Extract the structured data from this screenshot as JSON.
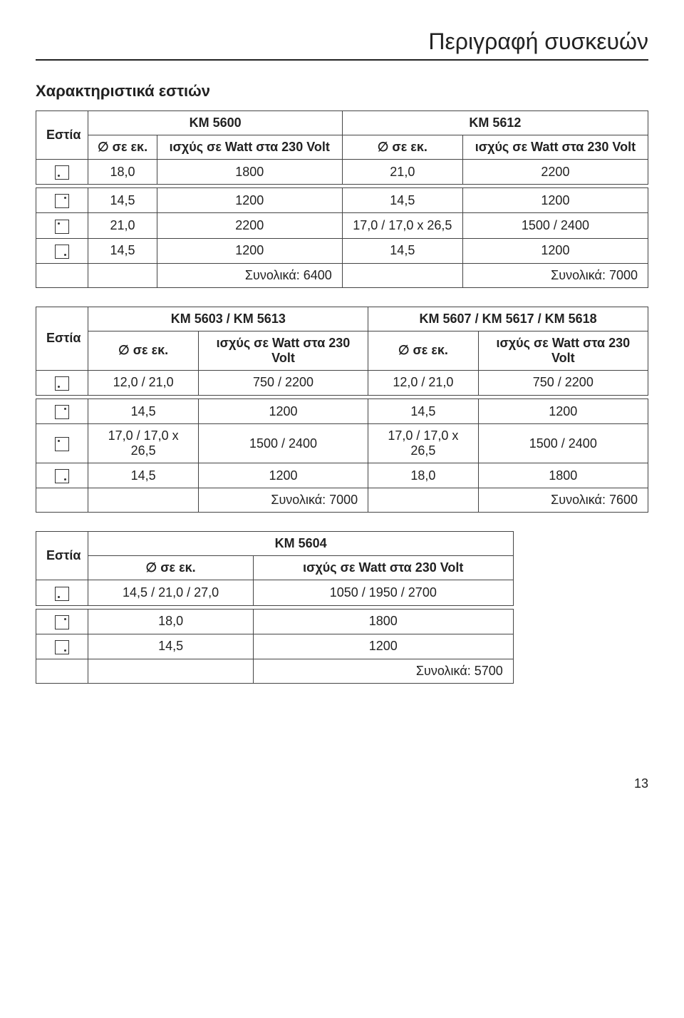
{
  "page_title": "Περιγραφή συσκευών",
  "section_title": "Χαρακτηριστικά εστιών",
  "labels": {
    "estia": "Εστία",
    "diameter": "∅ σε εκ.",
    "power": "ισχύς σε Watt στα 230 Volt",
    "power_wide": "ισχύς σε Watt στα 230 Volt"
  },
  "table1": {
    "model_a": "KM 5600",
    "model_b": "KM 5612",
    "rows": [
      {
        "icon": "bl",
        "a_d": "18,0",
        "a_w": "1800",
        "b_d": "21,0",
        "b_w": "2200"
      },
      {
        "icon": "tr",
        "a_d": "14,5",
        "a_w": "1200",
        "b_d": "14,5",
        "b_w": "1200"
      },
      {
        "icon": "tl",
        "a_d": "21,0",
        "a_w": "2200",
        "b_d": "17,0 / 17,0 x 26,5",
        "b_w": "1500 / 2400"
      },
      {
        "icon": "br",
        "a_d": "14,5",
        "a_w": "1200",
        "b_d": "14,5",
        "b_w": "1200"
      }
    ],
    "total_a": "Συνολικά: 6400",
    "total_b": "Συνολικά: 7000"
  },
  "table2": {
    "model_a": "KM 5603 / KM 5613",
    "model_b": "KM 5607 / KM 5617 / KM 5618",
    "rows": [
      {
        "icon": "bl",
        "a_d": "12,0 / 21,0",
        "a_w": "750 / 2200",
        "b_d": "12,0 / 21,0",
        "b_w": "750 / 2200"
      },
      {
        "icon": "tr",
        "a_d": "14,5",
        "a_w": "1200",
        "b_d": "14,5",
        "b_w": "1200"
      },
      {
        "icon": "tl",
        "a_d": "17,0 / 17,0 x 26,5",
        "a_w": "1500 / 2400",
        "b_d": "17,0 / 17,0 x 26,5",
        "b_w": "1500 / 2400"
      },
      {
        "icon": "br",
        "a_d": "14,5",
        "a_w": "1200",
        "b_d": "18,0",
        "b_w": "1800"
      }
    ],
    "total_a": "Συνολικά: 7000",
    "total_b": "Συνολικά: 7600"
  },
  "table3": {
    "model": "KM 5604",
    "rows": [
      {
        "icon": "bl",
        "d": "14,5 / 21,0 / 27,0",
        "w": "1050 / 1950 / 2700"
      },
      {
        "icon": "tr",
        "d": "18,0",
        "w": "1800"
      },
      {
        "icon": "br",
        "d": "14,5",
        "w": "1200"
      }
    ],
    "total": "Συνολικά: 5700"
  },
  "page_number": "13"
}
